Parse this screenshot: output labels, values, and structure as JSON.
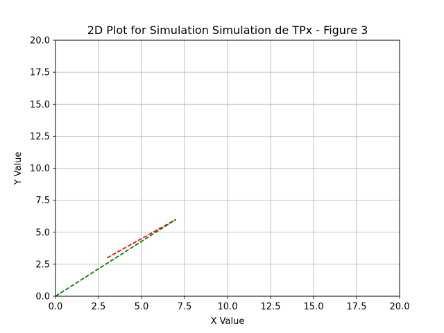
{
  "chart_data": {
    "type": "line",
    "title": "2D Plot for Simulation Simulation de TPx - Figure 3",
    "xlabel": "X Value",
    "ylabel": "Y Value",
    "xlim": [
      0,
      20
    ],
    "ylim": [
      0,
      20
    ],
    "grid": true,
    "legend": "none",
    "x_ticks": [
      "0.0",
      "2.5",
      "5.0",
      "7.5",
      "10.0",
      "12.5",
      "15.0",
      "17.5",
      "20.0"
    ],
    "y_ticks": [
      "0.0",
      "2.5",
      "5.0",
      "7.5",
      "10.0",
      "12.5",
      "15.0",
      "17.5",
      "20.0"
    ],
    "series": [
      {
        "color": "#ff0000",
        "style": "dashed",
        "x": [
          3,
          7
        ],
        "y": [
          3,
          6
        ]
      },
      {
        "color": "#008000",
        "style": "dashed",
        "x": [
          0,
          7
        ],
        "y": [
          0,
          6
        ]
      }
    ]
  }
}
